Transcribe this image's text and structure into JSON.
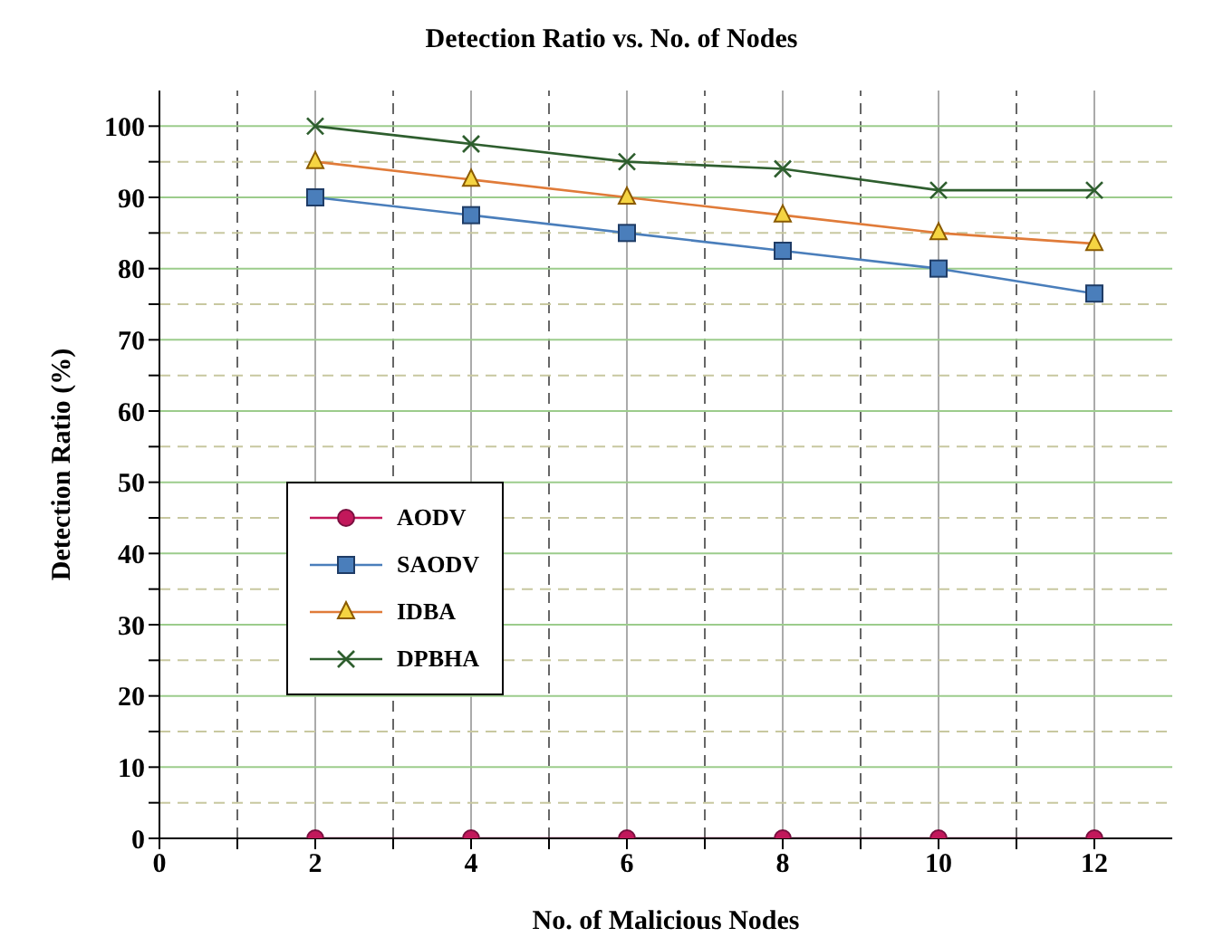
{
  "chart_data": {
    "type": "line",
    "title": "Detection Ratio vs. No. of Nodes",
    "xlabel": "No. of Malicious Nodes",
    "ylabel": "Detection Ratio (%)",
    "x": [
      2,
      4,
      6,
      8,
      10,
      12
    ],
    "series": [
      {
        "name": "AODV",
        "color": "#c2185b",
        "marker": "circle",
        "values": [
          0,
          0,
          0,
          0,
          0,
          0
        ]
      },
      {
        "name": "SAODV",
        "color": "#4a7ebb",
        "marker": "square",
        "values": [
          90,
          87.5,
          85,
          82.5,
          80,
          76.5
        ]
      },
      {
        "name": "IDBA",
        "color": "#e07b39",
        "marker": "triangle",
        "values": [
          95,
          92.5,
          90,
          87.5,
          85,
          83.5
        ]
      },
      {
        "name": "DPBHA",
        "color": "#2e5e2e",
        "marker": "cross",
        "values": [
          100,
          97.5,
          95,
          94,
          91,
          91
        ]
      }
    ],
    "xlim": [
      0,
      13
    ],
    "xticks": [
      0,
      {
        "value": 1,
        "label": null
      },
      2,
      {
        "value": 3,
        "label": null
      },
      4,
      {
        "value": 5,
        "label": null
      },
      6,
      {
        "value": 7,
        "label": null
      },
      8,
      {
        "value": 9,
        "label": null
      },
      10,
      {
        "value": 11,
        "label": null
      },
      12
    ],
    "ylim": [
      0,
      105
    ],
    "yticks": [
      0,
      {
        "value": 5,
        "label": null
      },
      10,
      {
        "value": 15,
        "label": null
      },
      20,
      {
        "value": 25,
        "label": null
      },
      30,
      {
        "value": 35,
        "label": null
      },
      40,
      {
        "value": 45,
        "label": null
      },
      50,
      {
        "value": 55,
        "label": null
      },
      60,
      {
        "value": 65,
        "label": null
      },
      70,
      {
        "value": 75,
        "label": null
      },
      80,
      {
        "value": 85,
        "label": null
      },
      90,
      {
        "value": 95,
        "label": null
      },
      100
    ],
    "grid": true,
    "legend": "center left",
    "line_style": "solid"
  }
}
